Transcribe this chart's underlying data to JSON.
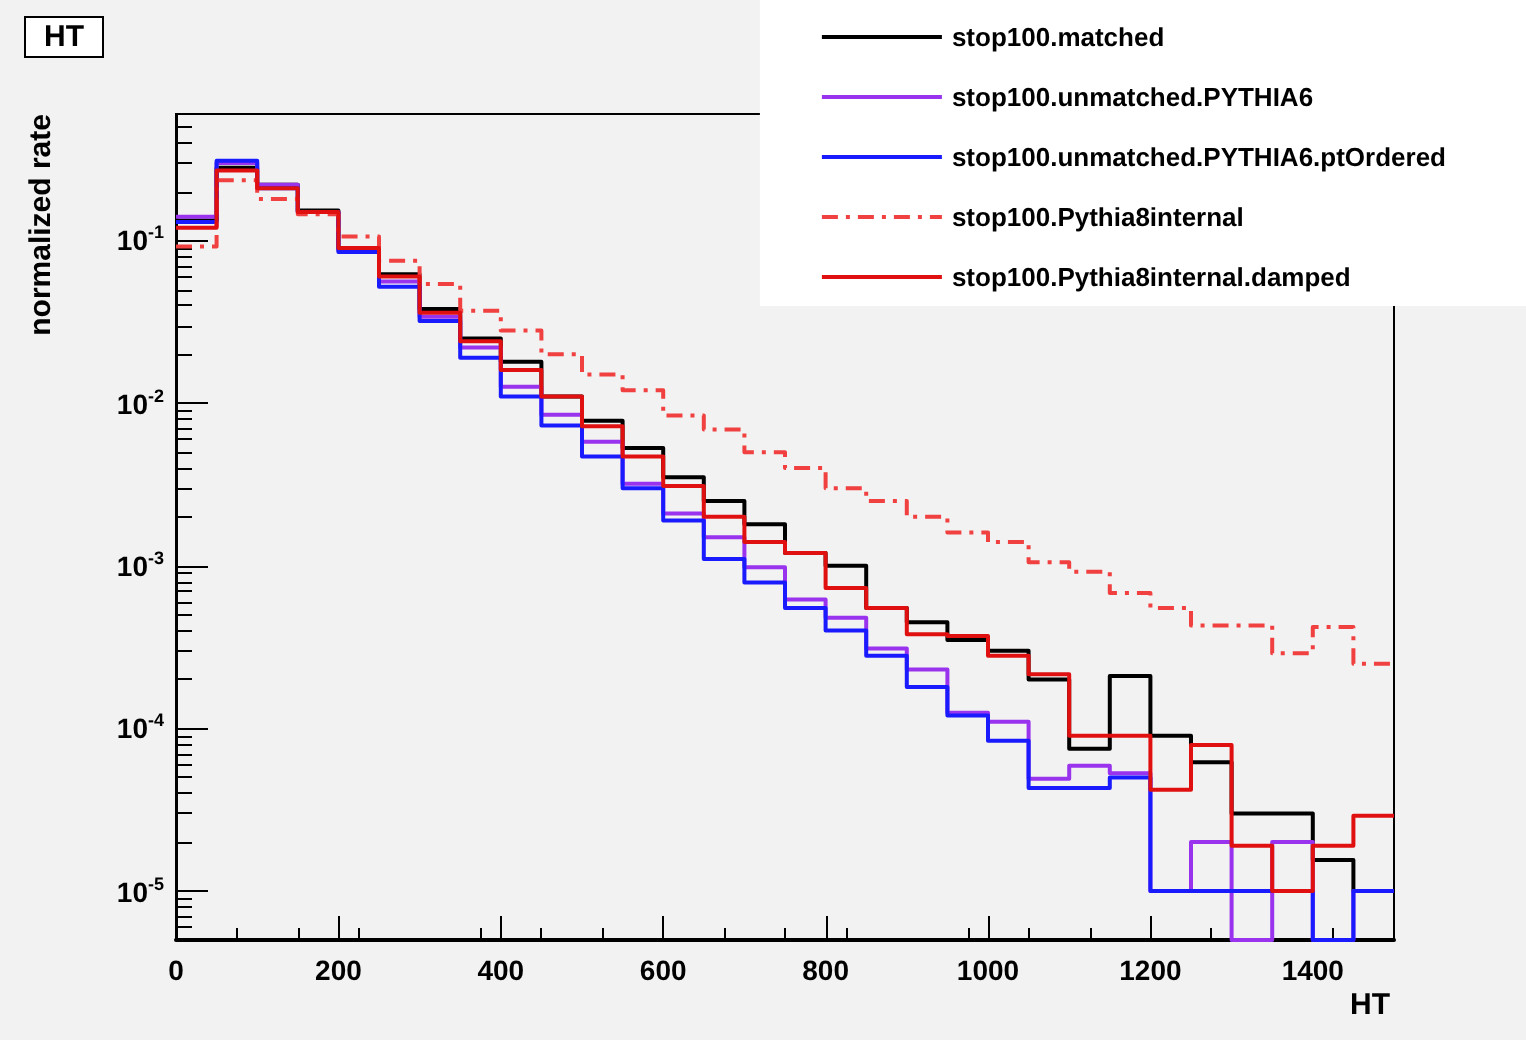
{
  "chart_data": {
    "type": "histogram",
    "title": "HT",
    "xlabel": "HT",
    "ylabel": "normalized rate",
    "bins": [
      0,
      50,
      100,
      150,
      200,
      250,
      300,
      350,
      400,
      450,
      500,
      550,
      600,
      650,
      700,
      750,
      800,
      850,
      900,
      950,
      1000,
      1050,
      1100,
      1150,
      1200,
      1250,
      1300,
      1350,
      1400,
      1450,
      1500
    ],
    "series": [
      {
        "name": "stop100.matched",
        "color": "#000000",
        "values": [
          0.133,
          0.28,
          0.22,
          0.153,
          0.089,
          0.062,
          0.038,
          0.025,
          0.018,
          0.011,
          0.0078,
          0.0053,
          0.0035,
          0.0025,
          0.0018,
          0.0012,
          0.001,
          0.00055,
          0.00045,
          0.00035,
          0.0003,
          0.0002,
          7.5e-05,
          0.00021,
          9e-05,
          6.2e-05,
          3e-05,
          3e-05,
          1.55e-05,
          1e-05
        ]
      },
      {
        "name": "stop100.unmatched.PYTHIA6",
        "color": "#9933ee",
        "values": [
          0.14,
          0.3,
          0.22,
          0.15,
          0.087,
          0.056,
          0.034,
          0.022,
          0.0126,
          0.0085,
          0.0058,
          0.0032,
          0.0021,
          0.0015,
          0.00098,
          0.00062,
          0.00048,
          0.00031,
          0.00023,
          0.000125,
          0.00011,
          4.9e-05,
          5.9e-05,
          5.3e-05,
          1e-05,
          2e-05,
          null,
          2e-05,
          null,
          1e-05
        ]
      },
      {
        "name": "stop100.unmatched.PYTHIA6.ptOrdered",
        "color": "#1a1aff",
        "values": [
          0.13,
          0.31,
          0.21,
          0.15,
          0.085,
          0.052,
          0.032,
          0.019,
          0.011,
          0.0073,
          0.0047,
          0.003,
          0.0019,
          0.0011,
          0.00079,
          0.00055,
          0.0004,
          0.00028,
          0.00018,
          0.00012,
          8.4e-05,
          4.3e-05,
          4.3e-05,
          5e-05,
          1e-05,
          1e-05,
          1e-05,
          1e-05,
          null,
          1e-05
        ]
      },
      {
        "name": "stop100.Pythia8internal",
        "color": "#f04040",
        "line_style": "dashed",
        "values": [
          0.092,
          0.235,
          0.18,
          0.145,
          0.106,
          0.075,
          0.054,
          0.037,
          0.028,
          0.02,
          0.015,
          0.012,
          0.0084,
          0.0069,
          0.005,
          0.004,
          0.003,
          0.0025,
          0.002,
          0.0016,
          0.0014,
          0.00105,
          0.00092,
          0.00068,
          0.00055,
          0.00043,
          0.00043,
          0.00029,
          0.00042,
          0.00025
        ]
      },
      {
        "name": "stop100.Pythia8internal.damped",
        "color": "#e01010",
        "values": [
          0.12,
          0.27,
          0.21,
          0.15,
          0.09,
          0.06,
          0.036,
          0.024,
          0.016,
          0.011,
          0.0072,
          0.0047,
          0.0031,
          0.002,
          0.0014,
          0.0012,
          0.00073,
          0.00055,
          0.00038,
          0.00037,
          0.00028,
          0.000215,
          9e-05,
          9e-05,
          4.2e-05,
          7.9e-05,
          1.9e-05,
          1e-05,
          1.9e-05,
          2.9e-05
        ]
      }
    ],
    "xlim": [
      0,
      1500
    ],
    "xticks": [
      0,
      200,
      400,
      600,
      800,
      1000,
      1200,
      1400
    ],
    "ylim": [
      5e-06,
      0.6
    ],
    "yticks": [
      {
        "value": 1e-05,
        "label": "10$^{-5}$"
      },
      {
        "value": 0.0001,
        "label": "10$^{-4}$"
      },
      {
        "value": 0.001,
        "label": "10$^{-3}$"
      },
      {
        "value": 0.01,
        "label": "10$^{-2}$"
      },
      {
        "value": 0.1,
        "label": "10$^{-1}$"
      }
    ],
    "log": "y",
    "grid": false,
    "legend": "top right",
    "line_style": "solid"
  }
}
